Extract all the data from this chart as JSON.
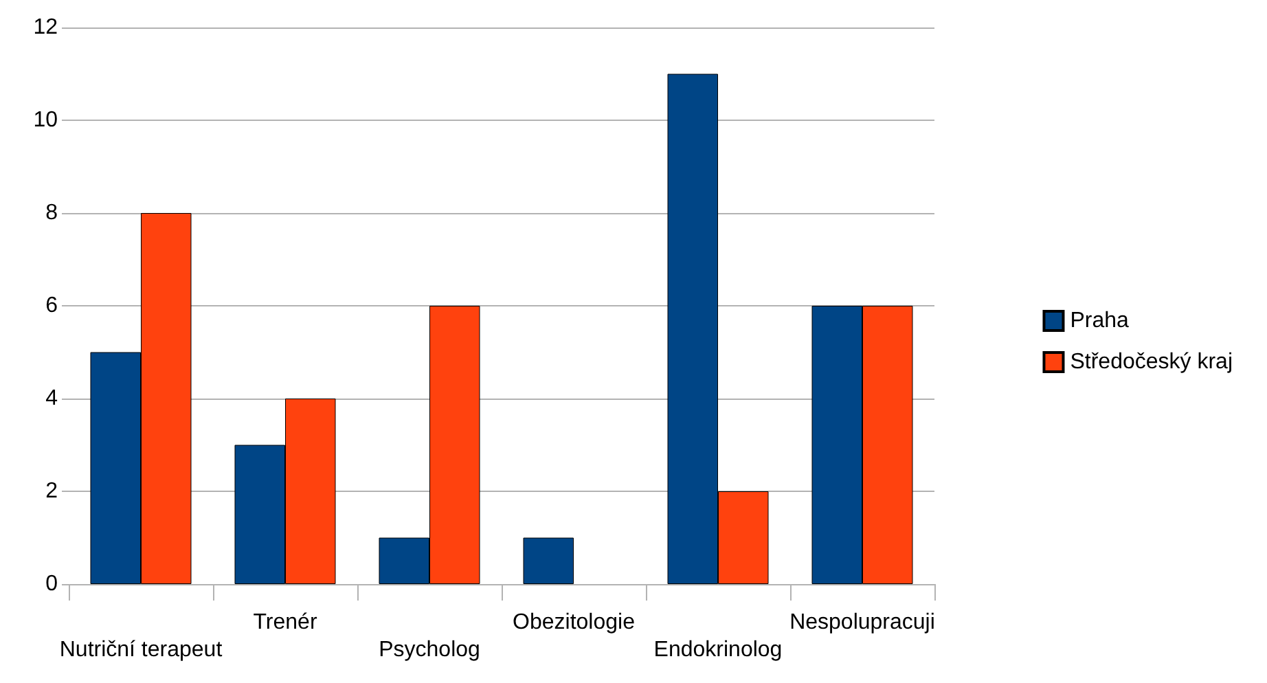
{
  "chart_data": {
    "type": "bar",
    "categories": [
      "Nutriční terapeut",
      "Trenér",
      "Psycholog",
      "Obezitologie",
      "Endokrinolog",
      "Nespolupracuji"
    ],
    "series": [
      {
        "name": "Praha",
        "color": "#004586",
        "values": [
          5,
          3,
          1,
          1,
          11,
          6
        ]
      },
      {
        "name": "Středočeský kraj",
        "color": "#ff420e",
        "values": [
          8,
          4,
          6,
          0,
          2,
          6
        ]
      }
    ],
    "ylim": [
      0,
      12
    ],
    "yticks": [
      0,
      2,
      4,
      6,
      8,
      10,
      12
    ],
    "grid": "y",
    "legend": "right"
  }
}
